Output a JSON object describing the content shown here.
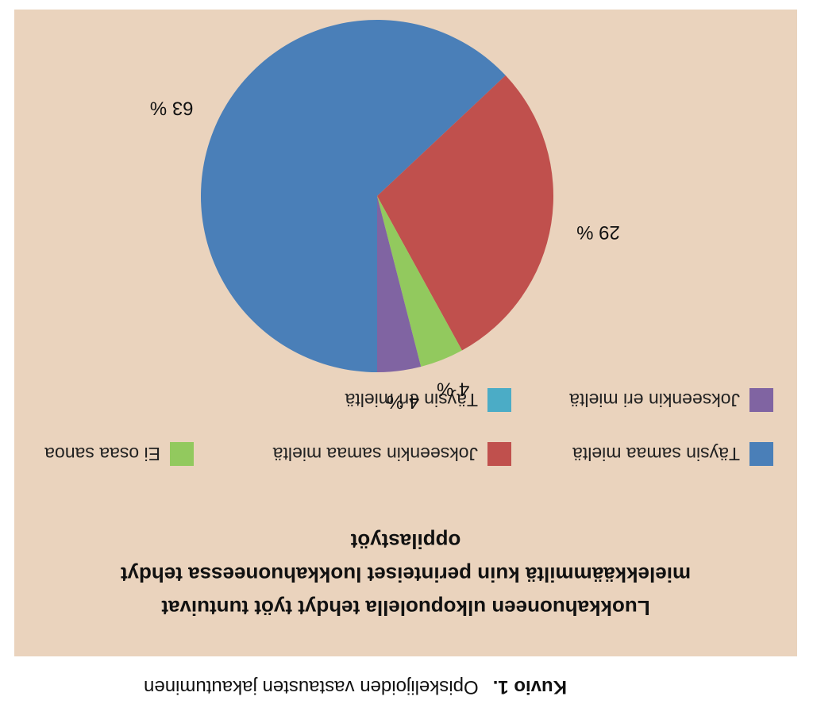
{
  "chart_data": {
    "type": "pie",
    "title": "Luokkahuoneen ulkopuolella tehdyt työt tuntuivat mielekkäämmiltä kuin perinteiset luokkahuoneessa tehdyt oppilastyöt",
    "title_lines": [
      "Luokkahuoneen ulkopuolella tehdyt työt tuntuivat",
      "mielekkäämmiltä kuin perinteiset luokkahuoneessa tehdyt",
      "oppilastyöt"
    ],
    "slices": [
      {
        "label": "Täysin samaa mieltä",
        "value": 63,
        "display": "63 %",
        "color": "#4a7fb8"
      },
      {
        "label": "Jokseenkin samaa mieltä",
        "value": 29,
        "display": "29 %",
        "color": "#c0504d"
      },
      {
        "label": "Ei osaa sanoa",
        "value": 4,
        "display": "4 %",
        "color": "#92c95e"
      },
      {
        "label": "Jokseenkin eri mieltä",
        "value": 4,
        "display": "4 %",
        "color": "#8064a2"
      },
      {
        "label": "Täysin eri mieltä",
        "value": 0,
        "display": "",
        "color": "#4bacc6"
      }
    ],
    "legend": [
      {
        "label": "Täysin samaa mieltä",
        "color": "#4a7fb8"
      },
      {
        "label": "Jokseenkin samaa mieltä",
        "color": "#c0504d"
      },
      {
        "label": "Ei osaa sanoa",
        "color": "#92c95e"
      },
      {
        "label": "Jokseenkin eri mieltä",
        "color": "#8064a2"
      },
      {
        "label": "Täysin eri mieltä",
        "color": "#4bacc6"
      }
    ],
    "legend_position": "below chart",
    "orientation": "rotated 180 degrees"
  },
  "caption": {
    "figure_label": "Kuvio 1.",
    "text": "Opiskelijoiden vastausten jakautuminen"
  }
}
